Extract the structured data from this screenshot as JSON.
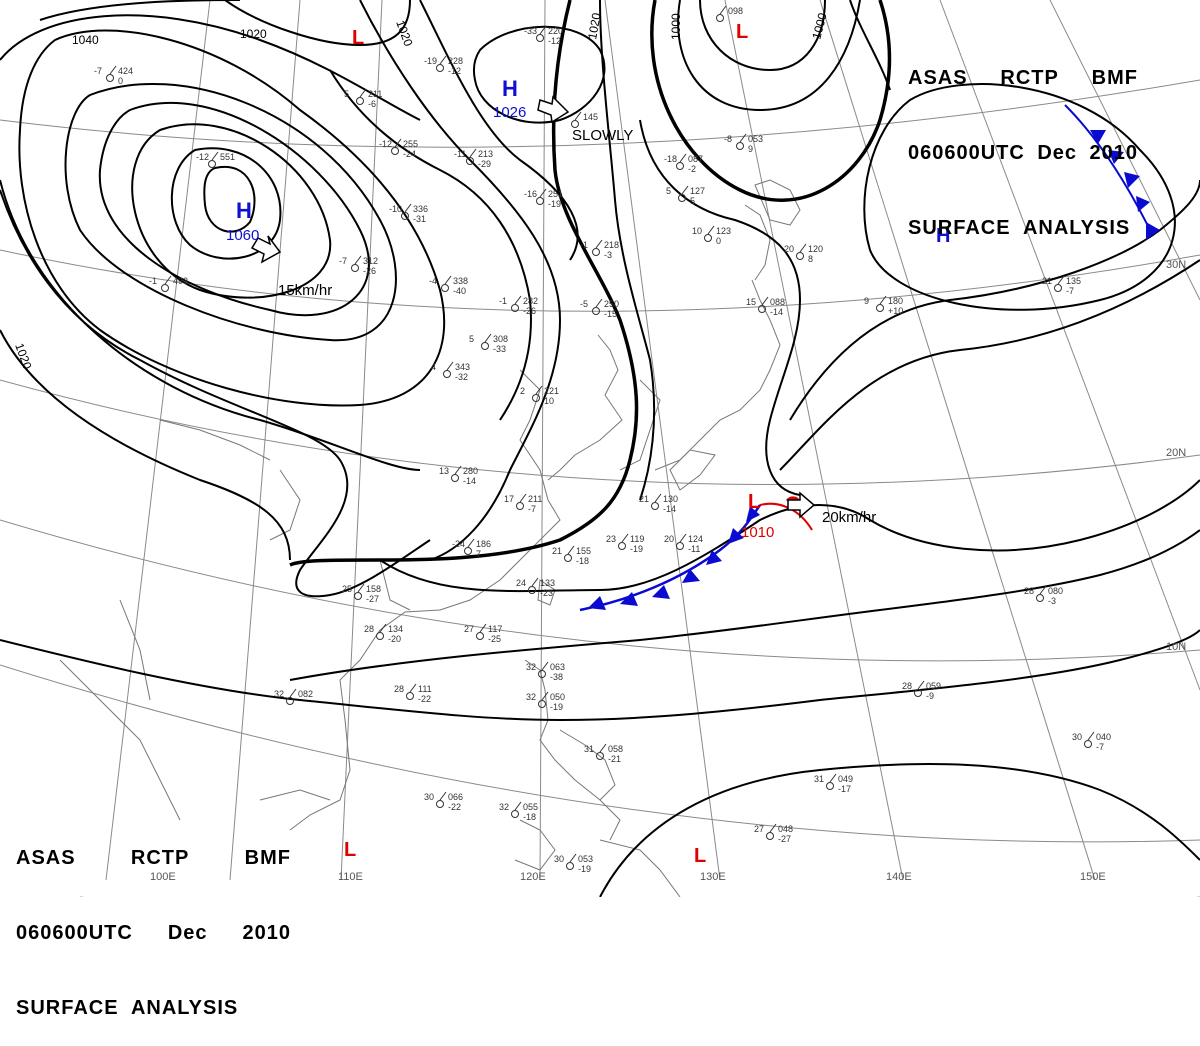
{
  "header_top": {
    "line1": [
      "ASAS",
      "RCTP",
      "BMF"
    ],
    "line2": [
      "060600UTC",
      "Dec",
      "2010"
    ],
    "line3": "SURFACE  ANALYSIS"
  },
  "header_bottom": {
    "line1": [
      "ASAS",
      "RCTP",
      "BMF"
    ],
    "line2": [
      "060600UTC",
      "Dec",
      "2010"
    ],
    "line3": "SURFACE  ANALYSIS"
  },
  "pressure_systems": {
    "high_mongolia": {
      "symbol": "H",
      "pressure": "1060"
    },
    "high_north": {
      "symbol": "H",
      "pressure": "1026",
      "motion": "SLOWLY"
    },
    "high_pacific": {
      "symbol": "H"
    },
    "low_northwest": {
      "symbol": "L"
    },
    "low_northeast": {
      "symbol": "L"
    },
    "low_east_china_sea": {
      "symbol": "L",
      "pressure": "1010",
      "motion": "20km/hr"
    },
    "low_southwest": {
      "symbol": "L"
    },
    "low_south": {
      "symbol": "L"
    },
    "mongolia_motion": "15km/hr"
  },
  "isobar_labels": [
    "1040",
    "1020",
    "1020",
    "1020",
    "1000",
    "1000",
    "1020"
  ],
  "longitude_labels": [
    "100E",
    "110E",
    "120E",
    "130E",
    "140E",
    "150E"
  ],
  "latitude_labels": [
    "30N",
    "20N",
    "10N"
  ],
  "colors": {
    "high": "#1010d0",
    "low": "#e00000",
    "cold_front": "#0a0ad0",
    "warm_front": "#e00000",
    "coast": "#777777",
    "grid": "#777777",
    "isobar": "#000000"
  },
  "station_samples": [
    {
      "id": "st1",
      "value": "220",
      "temp": "-33",
      "dew": "-12"
    },
    {
      "id": "st2",
      "value": "228",
      "temp": "-19",
      "dew": "-12"
    },
    {
      "id": "st3",
      "value": "211",
      "temp": "5",
      "dew": "-6"
    },
    {
      "id": "st4",
      "value": "255",
      "temp": "-12",
      "dew": "-24"
    },
    {
      "id": "st5",
      "value": "213",
      "temp": "-11",
      "dew": "-29"
    },
    {
      "id": "st6",
      "value": "336",
      "temp": "-10",
      "dew": "-31"
    },
    {
      "id": "st7",
      "value": "312",
      "temp": "-7",
      "dew": "-26"
    },
    {
      "id": "st8",
      "value": "338",
      "temp": "-4",
      "dew": "-40"
    },
    {
      "id": "st9",
      "value": "282",
      "temp": "-1",
      "dew": "-26"
    },
    {
      "id": "st10",
      "value": "308",
      "temp": "5",
      "dew": "-33"
    },
    {
      "id": "st11",
      "value": "343",
      "temp": "4",
      "dew": "-32"
    },
    {
      "id": "st12",
      "value": "280",
      "temp": "13",
      "dew": "-14"
    },
    {
      "id": "st13",
      "value": "211",
      "temp": "17",
      "dew": "-7"
    },
    {
      "id": "st14",
      "value": "186",
      "temp": "-24",
      "dew": "7"
    },
    {
      "id": "st15",
      "value": "155",
      "temp": "21",
      "dew": "-18"
    },
    {
      "id": "st16",
      "value": "133",
      "temp": "24",
      "dew": "-23"
    },
    {
      "id": "st17",
      "value": "158",
      "temp": "25",
      "dew": "-27"
    },
    {
      "id": "st18",
      "value": "134",
      "temp": "28",
      "dew": "-20"
    },
    {
      "id": "st19",
      "value": "117",
      "temp": "27",
      "dew": "-25"
    },
    {
      "id": "st20",
      "value": "130",
      "temp": "21",
      "dew": "-14"
    },
    {
      "id": "st21",
      "value": "119",
      "temp": "23",
      "dew": "-19"
    },
    {
      "id": "st22",
      "value": "124",
      "temp": "20",
      "dew": "-11"
    },
    {
      "id": "st23",
      "value": "111",
      "temp": "28",
      "dew": "-22"
    },
    {
      "id": "st24",
      "value": "082",
      "temp": "32",
      "dew": ""
    },
    {
      "id": "st25",
      "value": "063",
      "temp": "32",
      "dew": "-38"
    },
    {
      "id": "st26",
      "value": "050",
      "temp": "32",
      "dew": "-19"
    },
    {
      "id": "st27",
      "value": "058",
      "temp": "31",
      "dew": "-21"
    },
    {
      "id": "st28",
      "value": "066",
      "temp": "30",
      "dew": "-22"
    },
    {
      "id": "st29",
      "value": "055",
      "temp": "32",
      "dew": "-18"
    },
    {
      "id": "st30",
      "value": "053",
      "temp": "30",
      "dew": "-19"
    },
    {
      "id": "st31",
      "value": "048",
      "temp": "27",
      "dew": "-27"
    },
    {
      "id": "st32",
      "value": "049",
      "temp": "31",
      "dew": "-17"
    },
    {
      "id": "st33",
      "value": "059",
      "temp": "28",
      "dew": "-9"
    },
    {
      "id": "st34",
      "value": "080",
      "temp": "28",
      "dew": "-3"
    },
    {
      "id": "st35",
      "value": "135",
      "temp": "21",
      "dew": "-7"
    },
    {
      "id": "st36",
      "value": "180",
      "temp": "9",
      "dew": "+10"
    },
    {
      "id": "st37",
      "value": "053",
      "temp": "-8",
      "dew": "9"
    },
    {
      "id": "st38",
      "value": "087",
      "temp": "-18",
      "dew": "-2"
    },
    {
      "id": "st39",
      "value": "127",
      "temp": "5",
      "dew": "5"
    },
    {
      "id": "st40",
      "value": "123",
      "temp": "10",
      "dew": "0"
    },
    {
      "id": "st41",
      "value": "088",
      "temp": "15",
      "dew": "-14"
    },
    {
      "id": "st42",
      "value": "120",
      "temp": "20",
      "dew": "8"
    },
    {
      "id": "st43",
      "value": "145",
      "temp": "",
      "dew": ""
    },
    {
      "id": "st44",
      "value": "251",
      "temp": "-16",
      "dew": "-19"
    },
    {
      "id": "st45",
      "value": "218",
      "temp": "-1",
      "dew": "-3"
    },
    {
      "id": "st46",
      "value": "250",
      "temp": "-5",
      "dew": "-15"
    },
    {
      "id": "st47",
      "value": "221",
      "temp": "2",
      "dew": "10"
    },
    {
      "id": "st48",
      "value": "040",
      "temp": "30",
      "dew": "-7"
    },
    {
      "id": "st49",
      "value": "098",
      "temp": "",
      "dew": ""
    },
    {
      "id": "st50",
      "value": "424",
      "temp": "-7",
      "dew": "0"
    },
    {
      "id": "st51",
      "value": "493",
      "temp": "-1",
      "dew": ""
    },
    {
      "id": "st52",
      "value": "551",
      "temp": "-12",
      "dew": ""
    }
  ]
}
